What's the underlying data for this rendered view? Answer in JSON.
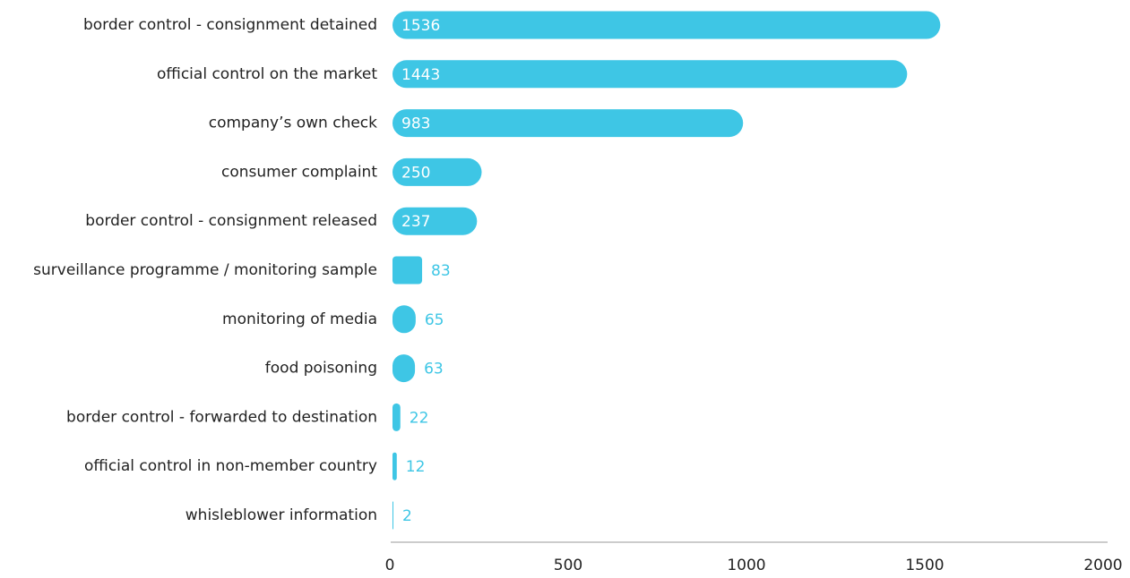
{
  "chart_data": {
    "type": "bar",
    "orientation": "horizontal",
    "categories": [
      "border control - consignment detained",
      "official control on the market",
      "company’s own check",
      "consumer complaint",
      "border control - consignment released",
      "surveillance programme / monitoring sample",
      "monitoring of media",
      "food poisoning",
      "border control - forwarded to destination",
      "official control in non-member country",
      "whisleblower information"
    ],
    "values": [
      1536,
      1443,
      983,
      250,
      237,
      83,
      65,
      63,
      22,
      12,
      2
    ],
    "xlim": [
      0,
      2000
    ],
    "xticks": [
      "0",
      "500",
      "1000",
      "1500",
      "2000"
    ],
    "xticks_values": [
      0,
      500,
      1000,
      1500,
      2000
    ],
    "grid": false,
    "legend": "none",
    "colors": {
      "bar": "#3ec6e5",
      "axis": "#9a9a9a",
      "text": "#222222"
    }
  }
}
